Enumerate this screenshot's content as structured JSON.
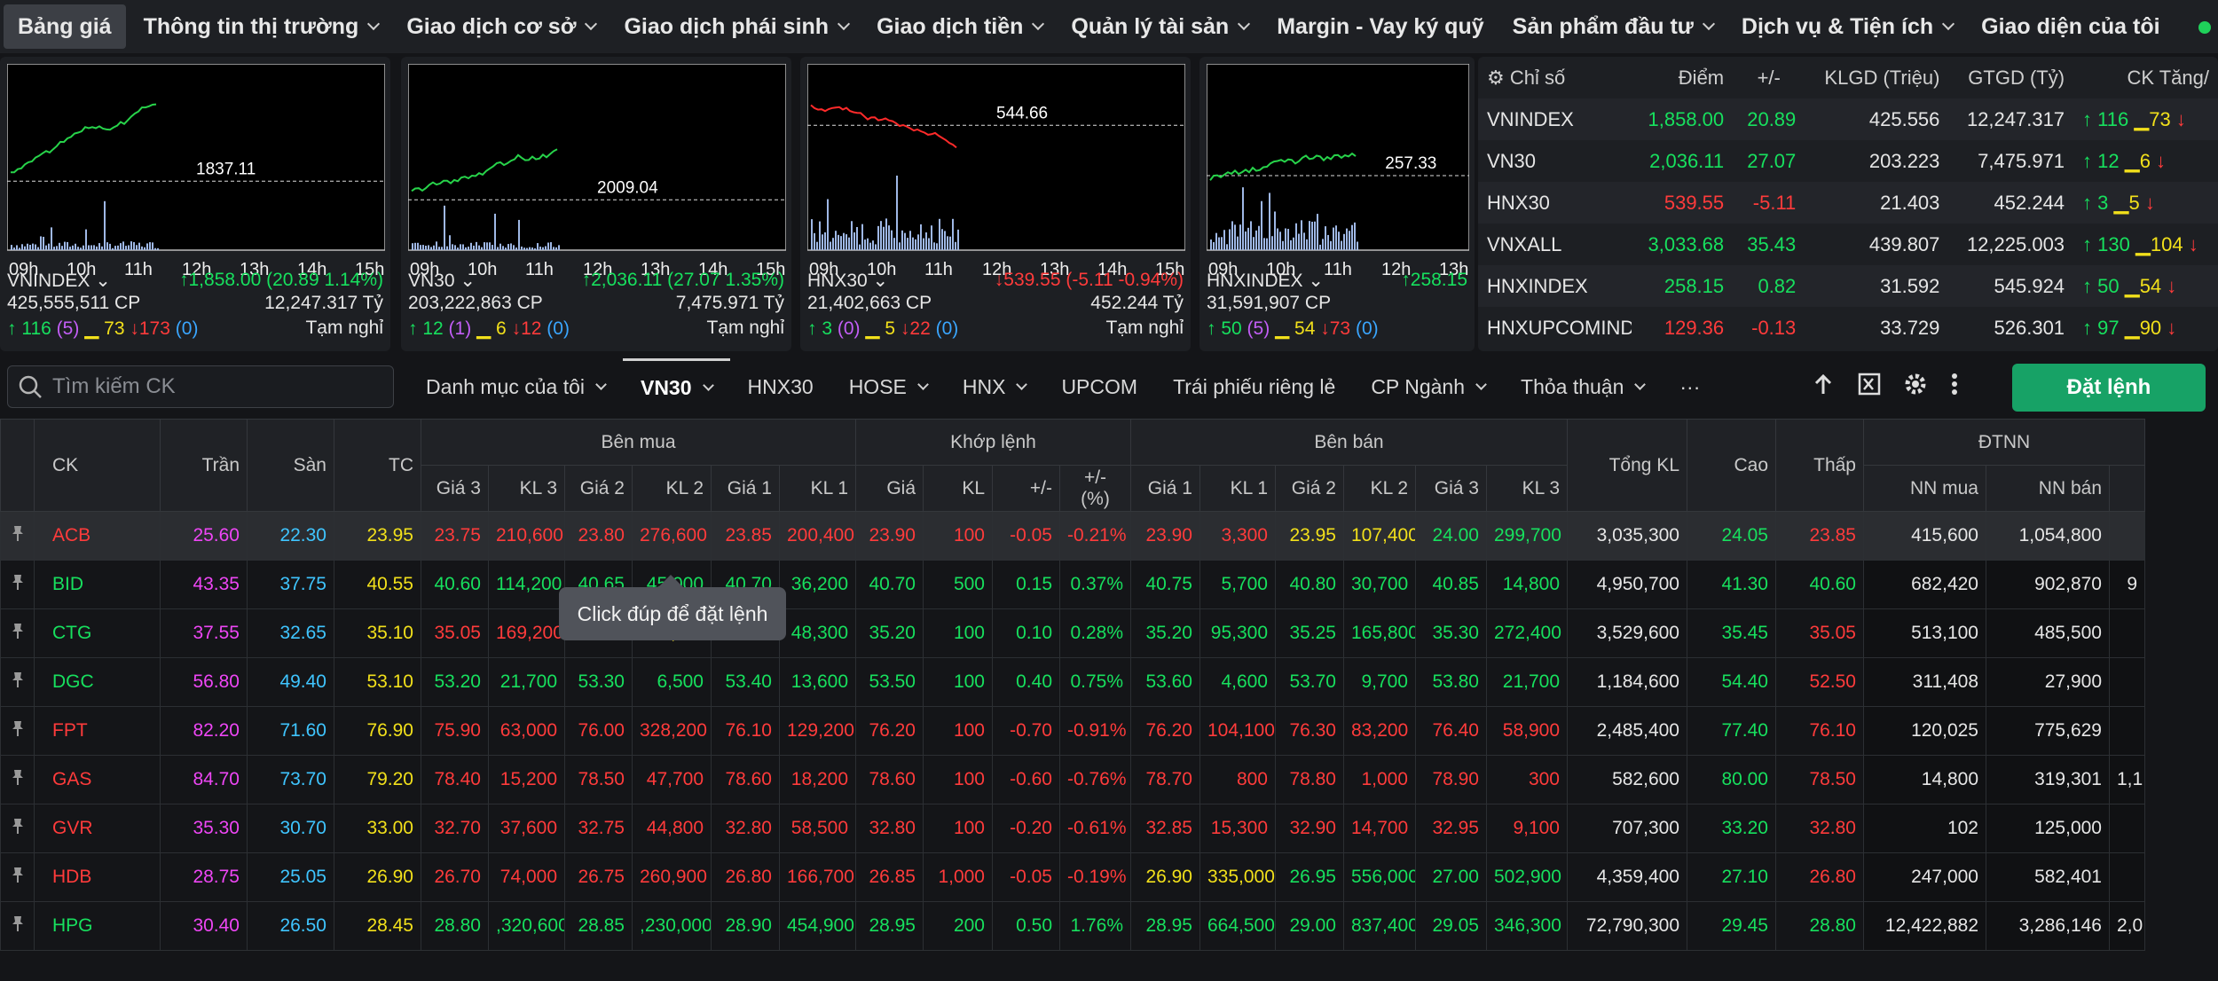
{
  "nav": [
    {
      "label": "Bảng giá",
      "chev": false,
      "active": true
    },
    {
      "label": "Thông tin thị trường",
      "chev": true
    },
    {
      "label": "Giao dịch cơ sở",
      "chev": true
    },
    {
      "label": "Giao dịch phái sinh",
      "chev": true
    },
    {
      "label": "Giao dịch tiền",
      "chev": true
    },
    {
      "label": "Quản lý tài sản",
      "chev": true
    },
    {
      "label": "Margin - Vay ký quỹ",
      "chev": false
    },
    {
      "label": "Sản phẩm đầu tư",
      "chev": true
    },
    {
      "label": "Dịch vụ & Tiện ích",
      "chev": true
    },
    {
      "label": "Giao diện của tôi",
      "chev": false
    }
  ],
  "panels": [
    {
      "name": "VNINDEX",
      "ref": "1837.11",
      "times": [
        "09h",
        "10h",
        "11h",
        "12h",
        "13h",
        "14h",
        "15h"
      ],
      "change": "1,858.00 (20.89 1.14%)",
      "dir": "up",
      "vol": "425,555,511 CP",
      "val": "12,247.317 Tỷ",
      "adv": "116",
      "advc": "(5)",
      "unch": "73",
      "dec": "173",
      "decc": "(0)",
      "status": "Tạm nghỉ",
      "color": "#27d34a",
      "ypos": 0.63
    },
    {
      "name": "VN30",
      "ref": "2009.04",
      "times": [
        "09h",
        "10h",
        "11h",
        "12h",
        "13h",
        "14h",
        "15h"
      ],
      "change": "2,036.11 (27.07 1.35%)",
      "dir": "up",
      "vol": "203,222,863 CP",
      "val": "7,475.971 Tỷ",
      "adv": "12",
      "advc": "(1)",
      "unch": "6",
      "dec": "12",
      "decc": "(0)",
      "status": "Tạm nghỉ",
      "color": "#27d34a",
      "ypos": 0.73
    },
    {
      "name": "HNX30",
      "ref": "544.66",
      "times": [
        "09h",
        "10h",
        "11h",
        "12h",
        "13h",
        "14h",
        "15h"
      ],
      "change": "539.55 (-5.11 -0.94%)",
      "dir": "dn",
      "vol": "21,402,663 CP",
      "val": "452.244 Tỷ",
      "adv": "3",
      "advc": "(0)",
      "unch": "5",
      "dec": "22",
      "decc": "(0)",
      "status": "Tạm nghỉ",
      "color": "#ff2a2a",
      "ypos": 0.33
    },
    {
      "name": "HNXINDEX",
      "ref": "257.33",
      "times": [
        "09h",
        "10h",
        "11h",
        "12h",
        "13h"
      ],
      "change": "258.15",
      "dir": "up",
      "vol": "31,591,907 CP",
      "val": "",
      "adv": "50",
      "advc": "(5)",
      "unch": "54",
      "dec": "73",
      "decc": "(0)",
      "status": "",
      "color": "#27d34a",
      "ypos": 0.6
    }
  ],
  "index_table": {
    "headers": [
      "Chỉ số",
      "Điểm",
      "+/-",
      "KLGD (Triệu)",
      "GTGD (Tỷ)",
      "CK Tăng/"
    ],
    "rows": [
      {
        "name": "VNINDEX",
        "point": "1,858.00",
        "chg": "20.89",
        "vol": "425.556",
        "val": "12,247.317",
        "up": "116",
        "ref": "73",
        "dir": "up"
      },
      {
        "name": "VN30",
        "point": "2,036.11",
        "chg": "27.07",
        "vol": "203.223",
        "val": "7,475.971",
        "up": "12",
        "ref": "6",
        "dir": "up"
      },
      {
        "name": "HNX30",
        "point": "539.55",
        "chg": "-5.11",
        "vol": "21.403",
        "val": "452.244",
        "up": "3",
        "ref": "5",
        "dir": "dn"
      },
      {
        "name": "VNXALL",
        "point": "3,033.68",
        "chg": "35.43",
        "vol": "439.807",
        "val": "12,225.003",
        "up": "130",
        "ref": "104",
        "dir": "up"
      },
      {
        "name": "HNXINDEX",
        "point": "258.15",
        "chg": "0.82",
        "vol": "31.592",
        "val": "545.924",
        "up": "50",
        "ref": "54",
        "dir": "up"
      },
      {
        "name": "HNXUPCOMINDI",
        "point": "129.36",
        "chg": "-0.13",
        "vol": "33.729",
        "val": "526.301",
        "up": "97",
        "ref": "90",
        "dir": "dn"
      }
    ]
  },
  "search": {
    "placeholder": "Tìm kiếm CK"
  },
  "tabs": [
    {
      "label": "Danh mục của tôi",
      "chev": true
    },
    {
      "label": "VN30",
      "chev": true,
      "active": true
    },
    {
      "label": "HNX30",
      "chev": false
    },
    {
      "label": "HOSE",
      "chev": true
    },
    {
      "label": "HNX",
      "chev": true
    },
    {
      "label": "UPCOM",
      "chev": false
    },
    {
      "label": "Trái phiếu riêng lẻ",
      "chev": false
    },
    {
      "label": "CP Ngành",
      "chev": true
    },
    {
      "label": "Thỏa thuận",
      "chev": true
    },
    {
      "label": "···",
      "chev": false
    }
  ],
  "order_button": "Đặt lệnh",
  "grid_headers": {
    "ck": "CK",
    "tran": "Trần",
    "san": "Sàn",
    "tc": "TC",
    "ben_mua": "Bên mua",
    "khop_lenh": "Khớp lệnh",
    "ben_ban": "Bên bán",
    "tong_kl": "Tổng KL",
    "cao": "Cao",
    "thap": "Thấp",
    "dtnn": "ĐTNN",
    "sub": [
      "Giá 3",
      "KL 3",
      "Giá 2",
      "KL 2",
      "Giá 1",
      "KL 1",
      "Giá",
      "KL",
      "+/-",
      "+/- (%)",
      "Giá 1",
      "KL 1",
      "Giá 2",
      "KL 2",
      "Giá 3",
      "KL 3"
    ],
    "nn_mua": "NN mua",
    "nn_ban": "NN bán"
  },
  "rows": [
    {
      "s": "ACB",
      "tran": "25.60",
      "san": "22.30",
      "tc": "23.95",
      "v": [
        "23.75",
        "210,600",
        "23.80",
        "276,600",
        "23.85",
        "200,400",
        "23.90",
        "100",
        "-0.05",
        "-0.21%",
        "23.90",
        "3,300",
        "23.95",
        "107,400",
        "24.00",
        "299,700"
      ],
      "tot": "3,035,300",
      "cao": "24.05",
      "thap": "23.85",
      "nnm": "415,600",
      "nnb": "1,054,800",
      "extra": ""
    },
    {
      "s": "BID",
      "tran": "43.35",
      "san": "37.75",
      "tc": "40.55",
      "v": [
        "40.60",
        "114,200",
        "40.65",
        "45,000",
        "40.70",
        "36,200",
        "40.70",
        "500",
        "0.15",
        "0.37%",
        "40.75",
        "5,700",
        "40.80",
        "30,700",
        "40.85",
        "14,800"
      ],
      "tot": "4,950,700",
      "cao": "41.30",
      "thap": "40.60",
      "nnm": "682,420",
      "nnb": "902,870",
      "extra": "9"
    },
    {
      "s": "CTG",
      "tran": "37.55",
      "san": "32.65",
      "tc": "35.10",
      "v": [
        "35.05",
        "169,200",
        "35.10",
        "188,800",
        "35.15",
        "48,300",
        "35.20",
        "100",
        "0.10",
        "0.28%",
        "35.20",
        "95,300",
        "35.25",
        "165,800",
        "35.30",
        "272,400"
      ],
      "tot": "3,529,600",
      "cao": "35.45",
      "thap": "35.05",
      "nnm": "513,100",
      "nnb": "485,500",
      "extra": ""
    },
    {
      "s": "DGC",
      "tran": "56.80",
      "san": "49.40",
      "tc": "53.10",
      "v": [
        "53.20",
        "21,700",
        "53.30",
        "6,500",
        "53.40",
        "13,600",
        "53.50",
        "100",
        "0.40",
        "0.75%",
        "53.60",
        "4,600",
        "53.70",
        "9,700",
        "53.80",
        "21,700"
      ],
      "tot": "1,184,600",
      "cao": "54.40",
      "thap": "52.50",
      "nnm": "311,408",
      "nnb": "27,900",
      "extra": ""
    },
    {
      "s": "FPT",
      "tran": "82.20",
      "san": "71.60",
      "tc": "76.90",
      "v": [
        "75.90",
        "63,000",
        "76.00",
        "328,200",
        "76.10",
        "129,200",
        "76.20",
        "100",
        "-0.70",
        "-0.91%",
        "76.20",
        "104,100",
        "76.30",
        "83,200",
        "76.40",
        "58,900"
      ],
      "tot": "2,485,400",
      "cao": "77.40",
      "thap": "76.10",
      "nnm": "120,025",
      "nnb": "775,629",
      "extra": ""
    },
    {
      "s": "GAS",
      "tran": "84.70",
      "san": "73.70",
      "tc": "79.20",
      "v": [
        "78.40",
        "15,200",
        "78.50",
        "47,700",
        "78.60",
        "18,200",
        "78.60",
        "100",
        "-0.60",
        "-0.76%",
        "78.70",
        "800",
        "78.80",
        "1,000",
        "78.90",
        "300"
      ],
      "tot": "582,600",
      "cao": "80.00",
      "thap": "78.50",
      "nnm": "14,800",
      "nnb": "319,301",
      "extra": "1,1"
    },
    {
      "s": "GVR",
      "tran": "35.30",
      "san": "30.70",
      "tc": "33.00",
      "v": [
        "32.70",
        "37,600",
        "32.75",
        "44,800",
        "32.80",
        "58,500",
        "32.80",
        "100",
        "-0.20",
        "-0.61%",
        "32.85",
        "15,300",
        "32.90",
        "14,700",
        "32.95",
        "9,100"
      ],
      "tot": "707,300",
      "cao": "33.20",
      "thap": "32.80",
      "nnm": "102",
      "nnb": "125,000",
      "extra": ""
    },
    {
      "s": "HDB",
      "tran": "28.75",
      "san": "25.05",
      "tc": "26.90",
      "v": [
        "26.70",
        "74,000",
        "26.75",
        "260,900",
        "26.80",
        "166,700",
        "26.85",
        "1,000",
        "-0.05",
        "-0.19%",
        "26.90",
        "335,000",
        "26.95",
        "556,000",
        "27.00",
        "502,900"
      ],
      "tot": "4,359,400",
      "cao": "27.10",
      "thap": "26.80",
      "nnm": "247,000",
      "nnb": "582,401",
      "extra": ""
    },
    {
      "s": "HPG",
      "tran": "30.40",
      "san": "26.50",
      "tc": "28.45",
      "v": [
        "28.80",
        ",320,600",
        "28.85",
        ",230,000",
        "28.90",
        "454,900",
        "28.95",
        "200",
        "0.50",
        "1.76%",
        "28.95",
        "664,500",
        "29.00",
        "837,400",
        "29.05",
        "346,300"
      ],
      "tot": "72,790,300",
      "cao": "29.45",
      "thap": "28.80",
      "nnm": "12,422,882",
      "nnb": "3,286,146",
      "extra": "2,0"
    }
  ],
  "tooltip": "Click đúp để đặt lệnh",
  "colors": {
    "up": "#17e05e",
    "down": "#ff3b3b",
    "ref": "#f2e01b",
    "ceil": "#ee46f5",
    "floor": "#3fc5ff",
    "accent": "#17a266"
  }
}
